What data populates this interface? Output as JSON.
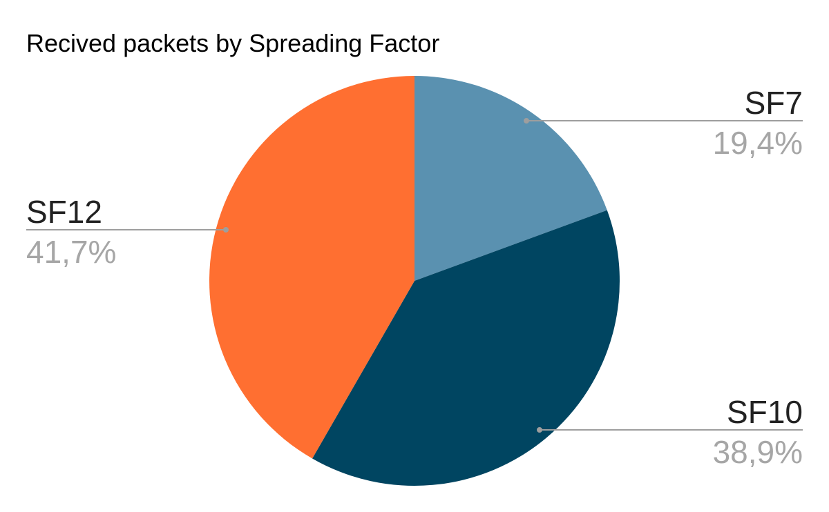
{
  "chart_data": {
    "type": "pie",
    "title": "Recived packets by Spreading Factor",
    "slices": [
      {
        "label": "SF7",
        "value": 19.4,
        "value_label": "19,4%",
        "color": "#5a91b0"
      },
      {
        "label": "SF10",
        "value": 38.9,
        "value_label": "38,9%",
        "color": "#004561"
      },
      {
        "label": "SF12",
        "value": 41.7,
        "value_label": "41,7%",
        "color": "#ff6f31"
      }
    ],
    "start_angle": "12 o'clock",
    "direction": "clockwise",
    "legend": "none",
    "label_style": "outside labels with leader lines"
  }
}
